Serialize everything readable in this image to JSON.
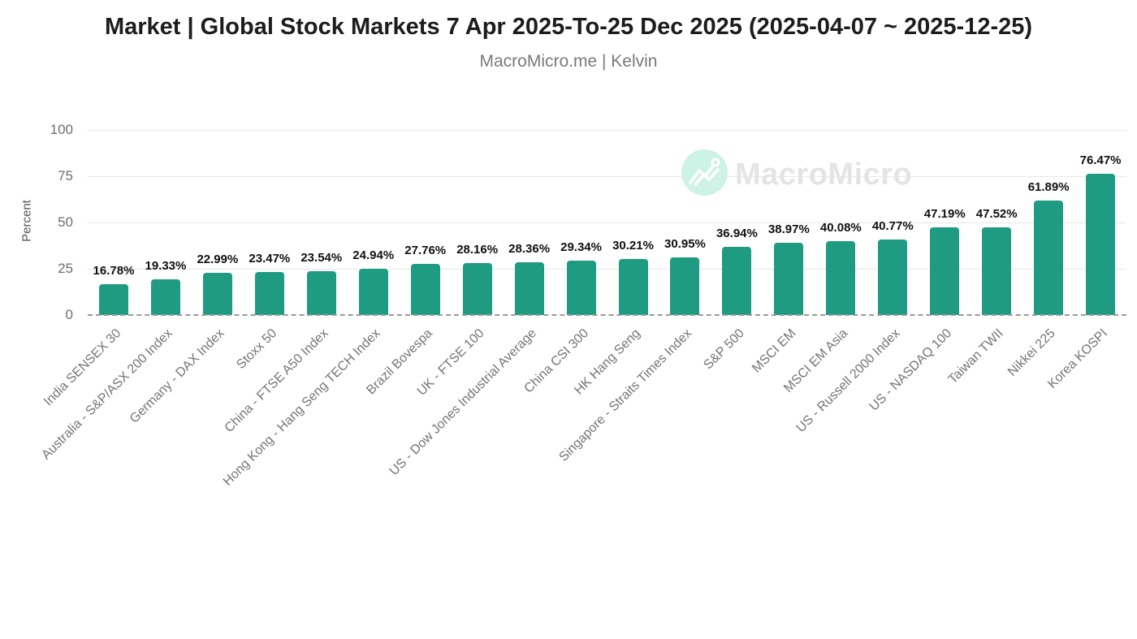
{
  "header": {
    "title": "Market | Global Stock Markets 7 Apr 2025-To-25 Dec 2025 (2025-04-07 ~ 2025-12-25)",
    "subtitle": "MacroMicro.me | Kelvin"
  },
  "watermark": {
    "brand_text": "MacroMicro",
    "logo_icon": "line-chart-logo-icon",
    "logo_bg_color": "#cdf2e6",
    "text_color": "#e4e4e4"
  },
  "chart_data": {
    "type": "bar",
    "title": "Market | Global Stock Markets 7 Apr 2025-To-25 Dec 2025 (2025-04-07 ~ 2025-12-25)",
    "subtitle": "MacroMicro.me | Kelvin",
    "xlabel": "",
    "ylabel": "Percent",
    "ylim": [
      0,
      100
    ],
    "yticks": [
      0,
      25,
      50,
      75,
      100
    ],
    "grid": true,
    "legend_position": "none",
    "bar_color": "#1e9b80",
    "categories": [
      "India SENSEX 30",
      "Australia - S&P/ASX 200 Index",
      "Germany - DAX Index",
      "Stoxx 50",
      "China - FTSE A50 Index",
      "Hong Kong - Hang Seng TECH Index",
      "Brazil Bovespa",
      "UK - FTSE 100",
      "US - Dow Jones Industrial Average",
      "China CSI 300",
      "HK Hang Seng",
      "Singapore - Straits Times Index",
      "S&P 500",
      "MSCI EM",
      "MSCI EM Asia",
      "US - Russell 2000 Index",
      "US - NASDAQ 100",
      "Taiwan TWII",
      "Nikkei 225",
      "Korea KOSPI"
    ],
    "values": [
      16.78,
      19.33,
      22.99,
      23.47,
      23.54,
      24.94,
      27.76,
      28.16,
      28.36,
      29.34,
      30.21,
      30.95,
      36.94,
      38.97,
      40.08,
      40.77,
      47.19,
      47.52,
      61.89,
      76.47
    ],
    "value_labels": [
      "16.78%",
      "19.33%",
      "22.99%",
      "23.47%",
      "23.54%",
      "24.94%",
      "27.76%",
      "28.16%",
      "28.36%",
      "29.34%",
      "30.21%",
      "30.95%",
      "36.94%",
      "38.97%",
      "40.08%",
      "40.77%",
      "47.19%",
      "47.52%",
      "61.89%",
      "76.47%"
    ]
  }
}
